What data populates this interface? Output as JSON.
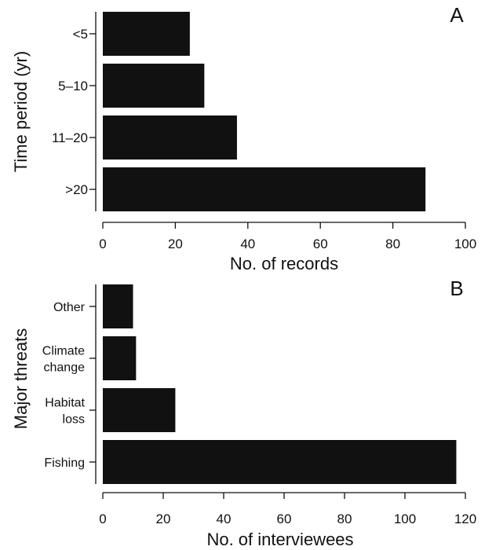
{
  "chart_data": [
    {
      "type": "bar",
      "orientation": "horizontal",
      "panel_letter": "A",
      "categories": [
        "<5",
        "5–10",
        "11–20",
        ">20"
      ],
      "values": [
        24,
        28,
        37,
        89
      ],
      "xlabel": "No. of records",
      "ylabel": "Time period (yr)",
      "xlim": [
        0,
        100
      ],
      "xticks": [
        "0",
        "20",
        "40",
        "60",
        "80",
        "100"
      ],
      "bar_color": "#111111",
      "grid": false
    },
    {
      "type": "bar",
      "orientation": "horizontal",
      "panel_letter": "B",
      "categories": [
        [
          "Other"
        ],
        [
          "Climate",
          "change"
        ],
        [
          "Habitat",
          "loss"
        ],
        [
          "Fishing"
        ]
      ],
      "values": [
        10,
        11,
        24,
        117
      ],
      "xlabel": "No. of interviewees",
      "ylabel": "Major threats",
      "xlim": [
        0,
        120
      ],
      "xticks": [
        "0",
        "20",
        "40",
        "60",
        "80",
        "100",
        "120"
      ],
      "bar_color": "#111111",
      "grid": false
    }
  ]
}
